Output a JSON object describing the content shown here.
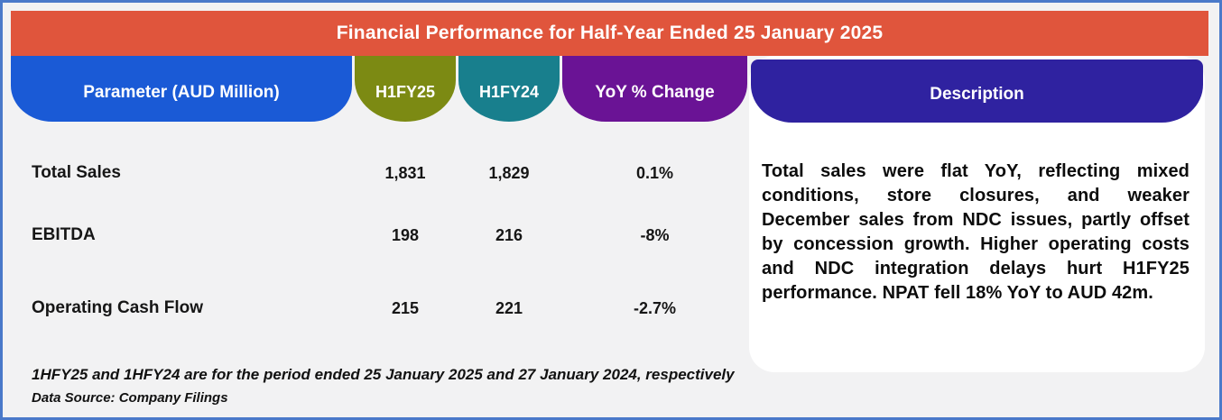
{
  "title": "Financial Performance for Half-Year Ended 25 January 2025",
  "columns": [
    {
      "label": "Parameter (AUD Million)",
      "color": "#1A5AD6"
    },
    {
      "label": "H1FY25",
      "color": "#7C8A13"
    },
    {
      "label": "H1FY24",
      "color": "#187F8D"
    },
    {
      "label": "YoY % Change",
      "color": "#6A1395"
    },
    {
      "label": "Description",
      "color": "#2F22A0"
    }
  ],
  "rows": [
    {
      "parameter": "Total Sales",
      "h1fy25": "1,831",
      "h1fy24": "1,829",
      "yoy": "0.1%"
    },
    {
      "parameter": "EBITDA",
      "h1fy25": "198",
      "h1fy24": "216",
      "yoy": "-8%"
    },
    {
      "parameter": "Operating Cash Flow",
      "h1fy25": "215",
      "h1fy24": "221",
      "yoy": "-2.7%"
    }
  ],
  "description": "Total sales were flat YoY, reflecting mixed conditions, store closures, and weaker December sales from NDC issues, partly offset by concession growth. Higher operating costs and NDC integration delays hurt H1FY25 performance. NPAT fell 18% YoY to AUD 42m.",
  "footnotes": [
    {
      "text": "1HFY25 and 1HFY24 are for the period ended 25 January 2025 and 27 January 2024, respectively"
    },
    {
      "text": "Data Source: Company Filings"
    }
  ],
  "colors": {
    "title_bar": "#E0553C",
    "background": "#F2F2F3",
    "outer_border": "#4A79C9",
    "card": "#FFFFFF",
    "text_dark": "#161616",
    "header_text": "#FFFFFF"
  },
  "chart_data": {
    "type": "table",
    "title": "Financial Performance for Half-Year Ended 25 January 2025",
    "columns": [
      "Parameter (AUD Million)",
      "H1FY25",
      "H1FY24",
      "YoY % Change",
      "Description"
    ],
    "rows": [
      [
        "Total Sales",
        "1,831",
        "1,829",
        "0.1%"
      ],
      [
        "EBITDA",
        "198",
        "216",
        "-8%"
      ],
      [
        "Operating Cash Flow",
        "215",
        "221",
        "-2.7%"
      ]
    ],
    "description_cell": "Total sales were flat YoY, reflecting mixed conditions, store closures, and weaker December sales from NDC issues, partly offset by concession growth. Higher operating costs and NDC integration delays hurt H1FY25 performance. NPAT fell 18% YoY to AUD 42m.",
    "footnotes": [
      "1HFY25 and 1HFY24 are for the period ended 25 January 2025 and 27 January 2024, respectively",
      "Data Source: Company Filings"
    ]
  }
}
